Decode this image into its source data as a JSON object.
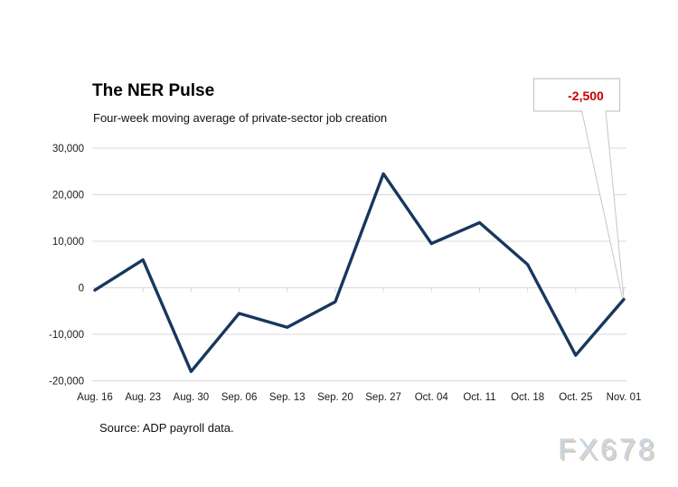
{
  "chart_data": {
    "type": "line",
    "title": "The NER Pulse",
    "subtitle": "Four-week moving average of private-sector job creation",
    "source_note": "Source: ADP payroll data.",
    "watermark": "FX678",
    "categories": [
      "Aug. 16",
      "Aug. 23",
      "Aug. 30",
      "Sep. 06",
      "Sep. 13",
      "Sep. 20",
      "Sep. 27",
      "Oct. 04",
      "Oct. 11",
      "Oct. 18",
      "Oct. 25",
      "Nov. 01"
    ],
    "values": [
      -500,
      6000,
      -18000,
      -5500,
      -8500,
      -3000,
      24500,
      9500,
      14000,
      5000,
      -14500,
      -2500
    ],
    "ylim": [
      -20000,
      30000
    ],
    "yticks": [
      30000,
      20000,
      10000,
      0,
      -10000,
      -20000
    ],
    "ytick_labels": [
      "30,000",
      "20,000",
      "10,000",
      "0",
      "-10,000",
      "-20,000"
    ],
    "grid": "horizontal",
    "legend": "none",
    "annotation": {
      "label": "-2,500",
      "category": "Nov. 01",
      "value": -2500
    },
    "colors": {
      "line": "#17375E",
      "annotation_text": "#C40000",
      "annotation_border": "#C6C6C6",
      "gridline": "#D9D9D9",
      "axis_text": "#1A1A1A",
      "watermark_fill": "#C7D6E3",
      "watermark_shadow": "#D8CABA"
    }
  }
}
